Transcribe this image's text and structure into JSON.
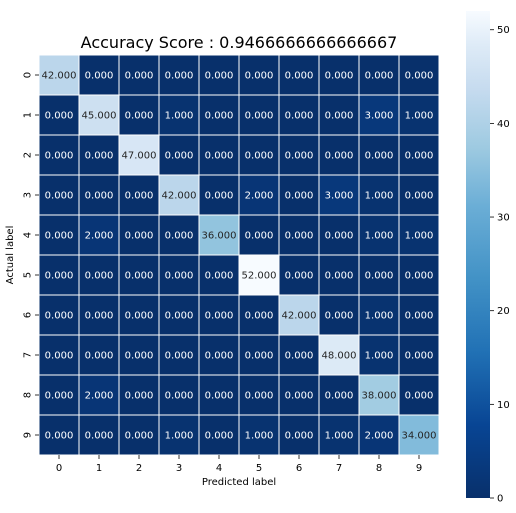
{
  "chart_data": {
    "type": "heatmap",
    "title": "Accuracy Score : 0.9466666666666667",
    "xlabel": "Predicted label",
    "ylabel": "Actual label",
    "x_categories": [
      "0",
      "1",
      "2",
      "3",
      "4",
      "5",
      "6",
      "7",
      "8",
      "9"
    ],
    "y_categories": [
      "0",
      "1",
      "2",
      "3",
      "4",
      "5",
      "6",
      "7",
      "8",
      "9"
    ],
    "matrix": [
      [
        42,
        0,
        0,
        0,
        0,
        0,
        0,
        0,
        0,
        0
      ],
      [
        0,
        45,
        0,
        1,
        0,
        0,
        0,
        0,
        3,
        1
      ],
      [
        0,
        0,
        47,
        0,
        0,
        0,
        0,
        0,
        0,
        0
      ],
      [
        0,
        0,
        0,
        42,
        0,
        2,
        0,
        3,
        1,
        0
      ],
      [
        0,
        2,
        0,
        0,
        36,
        0,
        0,
        0,
        1,
        1
      ],
      [
        0,
        0,
        0,
        0,
        0,
        52,
        0,
        0,
        0,
        0
      ],
      [
        0,
        0,
        0,
        0,
        0,
        0,
        42,
        0,
        1,
        0
      ],
      [
        0,
        0,
        0,
        0,
        0,
        0,
        0,
        48,
        1,
        0
      ],
      [
        0,
        2,
        0,
        0,
        0,
        0,
        0,
        0,
        38,
        0
      ],
      [
        0,
        0,
        0,
        1,
        0,
        1,
        0,
        1,
        2,
        34
      ]
    ],
    "value_format": "0.000",
    "colormap": "Blues_r",
    "vmin": 0,
    "vmax": 52,
    "colorbar_ticks": [
      0,
      10,
      20,
      30,
      40,
      50
    ],
    "colors": {
      "low": "#08306b",
      "high": "#f7fbff",
      "cell_border": "#ffffff"
    }
  }
}
